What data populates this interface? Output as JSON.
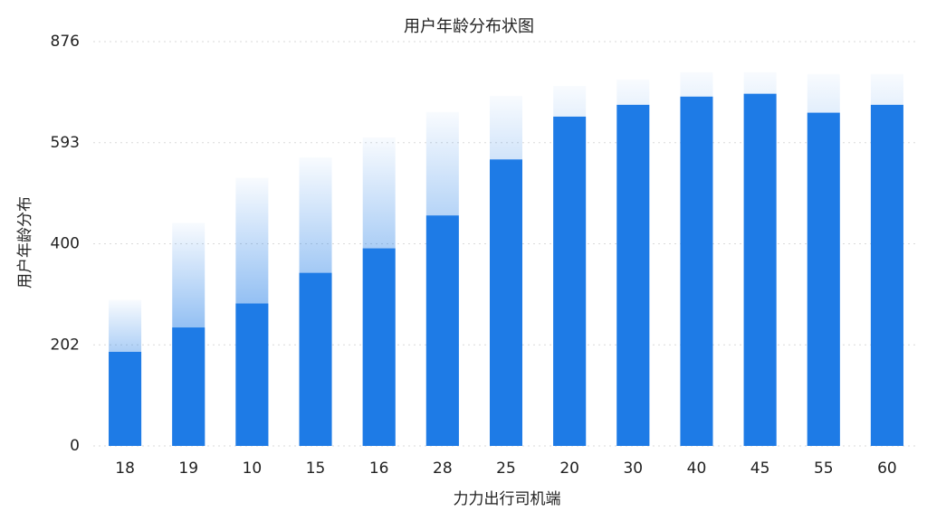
{
  "chart_data": {
    "type": "bar",
    "title": "用户年龄分布状图",
    "x_label": "力力出行司机端",
    "y_label": "用户年龄分布",
    "categories": [
      "18",
      "19",
      "10",
      "15",
      "16",
      "28",
      "25",
      "20",
      "30",
      "40",
      "45",
      "55",
      "60"
    ],
    "series": [
      {
        "color": "#1e7be6",
        "style": "faded",
        "values": [
          290,
          440,
          526,
          565,
          608,
          679,
          724,
          752,
          770,
          790,
          790,
          785,
          785
        ]
      },
      {
        "color": "#1e7be6",
        "style": "solid",
        "values": [
          188,
          236,
          283,
          343,
          391,
          454,
          561,
          666,
          699,
          722,
          730,
          677,
          699
        ]
      }
    ],
    "ylim": [
      0,
      876
    ],
    "yticks": [
      0,
      202,
      400,
      593,
      876
    ],
    "grid": true
  }
}
